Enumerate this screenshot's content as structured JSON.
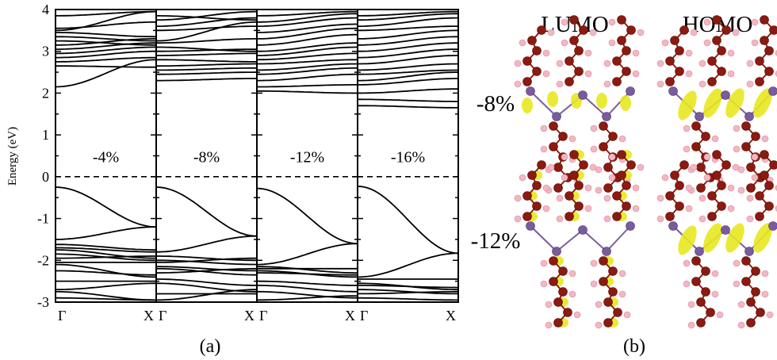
{
  "chart_data": {
    "type": "line",
    "ylabel": "Energy (eV)",
    "ylim": [
      -3,
      4
    ],
    "yticks": [
      "4",
      "3",
      "2",
      "1",
      "0",
      "-1",
      "-2",
      "-3"
    ],
    "fermi_level": 0,
    "grid": false,
    "panels": [
      {
        "strain_label": "-4%",
        "x_tick_labels": [
          "Γ",
          "X"
        ],
        "bands": [
          [
            -0.25,
            -1.2
          ],
          [
            -1.5,
            -1.2
          ],
          [
            -1.62,
            -1.75
          ],
          [
            -1.7,
            -1.8
          ],
          [
            -1.75,
            -1.95
          ],
          [
            -1.85,
            -2.0
          ],
          [
            -1.95,
            -1.9
          ],
          [
            -2.05,
            -2.05
          ],
          [
            -2.1,
            -2.4
          ],
          [
            -2.25,
            -2.35
          ],
          [
            -2.5,
            -2.5
          ],
          [
            -2.7,
            -2.55
          ],
          [
            -2.75,
            -2.95
          ],
          [
            -2.9,
            -2.95
          ],
          [
            2.15,
            2.8
          ],
          [
            2.65,
            2.62
          ],
          [
            2.75,
            2.85
          ],
          [
            2.85,
            3.0
          ],
          [
            2.95,
            3.1
          ],
          [
            3.05,
            3.2
          ],
          [
            3.15,
            3.3
          ],
          [
            3.25,
            3.15
          ],
          [
            3.35,
            3.25
          ],
          [
            3.45,
            3.35
          ],
          [
            3.5,
            3.95
          ],
          [
            3.55,
            3.7
          ],
          [
            3.85,
            3.95
          ]
        ],
        "vbm_eV": -0.25,
        "cbm_eV": 2.15
      },
      {
        "strain_label": "-8%",
        "x_tick_labels": [
          "Γ",
          "X"
        ],
        "bands": [
          [
            -0.25,
            -1.42
          ],
          [
            -1.8,
            -1.42
          ],
          [
            -1.9,
            -2.0
          ],
          [
            -2.0,
            -2.1
          ],
          [
            -2.05,
            -1.95
          ],
          [
            -2.15,
            -2.25
          ],
          [
            -2.2,
            -2.35
          ],
          [
            -2.3,
            -2.2
          ],
          [
            -2.45,
            -2.6
          ],
          [
            -2.55,
            -2.75
          ],
          [
            -2.8,
            -2.8
          ],
          [
            -2.95,
            -2.7
          ],
          [
            2.3,
            2.35
          ],
          [
            2.45,
            2.5
          ],
          [
            2.55,
            2.6
          ],
          [
            2.65,
            2.7
          ],
          [
            2.8,
            2.75
          ],
          [
            2.9,
            2.95
          ],
          [
            3.0,
            3.05
          ],
          [
            3.1,
            3.0
          ],
          [
            3.2,
            3.3
          ],
          [
            3.25,
            3.7
          ],
          [
            3.5,
            3.6
          ],
          [
            3.6,
            3.8
          ],
          [
            3.75,
            3.95
          ],
          [
            3.85,
            3.75
          ]
        ],
        "vbm_eV": -0.25,
        "cbm_eV": 2.3
      },
      {
        "strain_label": "-12%",
        "x_tick_labels": [
          "Γ",
          "X"
        ],
        "bands": [
          [
            -0.28,
            -1.6
          ],
          [
            -2.1,
            -1.6
          ],
          [
            -2.15,
            -2.3
          ],
          [
            -2.2,
            -2.2
          ],
          [
            -2.25,
            -2.4
          ],
          [
            -2.3,
            -2.35
          ],
          [
            -2.5,
            -2.6
          ],
          [
            -2.6,
            -2.75
          ],
          [
            -2.75,
            -2.9
          ],
          [
            -2.95,
            -2.85
          ],
          [
            2.05,
            2.0
          ],
          [
            2.15,
            2.2
          ],
          [
            2.3,
            2.45
          ],
          [
            2.45,
            2.6
          ],
          [
            2.55,
            2.7
          ],
          [
            2.7,
            2.8
          ],
          [
            2.8,
            2.95
          ],
          [
            2.9,
            3.1
          ],
          [
            3.0,
            3.2
          ],
          [
            3.15,
            3.4
          ],
          [
            3.3,
            3.55
          ],
          [
            3.45,
            3.65
          ],
          [
            3.6,
            3.8
          ],
          [
            3.7,
            3.9
          ],
          [
            3.85,
            3.95
          ]
        ],
        "vbm_eV": -0.28,
        "cbm_eV": 2.05
      },
      {
        "strain_label": "-16%",
        "x_tick_labels": [
          "Γ",
          "X"
        ],
        "bands": [
          [
            -0.23,
            -1.83
          ],
          [
            -2.4,
            -1.83
          ],
          [
            -2.45,
            -2.45
          ],
          [
            -2.55,
            -2.7
          ],
          [
            -2.6,
            -2.65
          ],
          [
            -2.7,
            -2.8
          ],
          [
            -2.8,
            -2.75
          ],
          [
            -2.9,
            -2.95
          ],
          [
            1.7,
            1.65
          ],
          [
            1.85,
            1.8
          ],
          [
            2.0,
            2.1
          ],
          [
            2.2,
            2.35
          ],
          [
            2.3,
            2.5
          ],
          [
            2.45,
            2.55
          ],
          [
            2.55,
            2.7
          ],
          [
            2.7,
            2.9
          ],
          [
            2.85,
            3.05
          ],
          [
            3.0,
            3.2
          ],
          [
            3.15,
            3.35
          ],
          [
            3.3,
            3.5
          ],
          [
            3.5,
            3.6
          ],
          [
            3.6,
            3.8
          ],
          [
            3.75,
            3.9
          ],
          [
            3.85,
            3.95
          ]
        ],
        "vbm_eV": -0.23,
        "cbm_eV": 1.7
      }
    ]
  },
  "panel_a_label": "(a)",
  "panel_b": {
    "label": "(b)",
    "column_headers": [
      "LUMO",
      "HOMO"
    ],
    "row_labels": [
      "-8%",
      "-12%"
    ],
    "colors": {
      "carbon": "#8b1a10",
      "hydrogen": "#f4b6c2",
      "nitrogen": "#7a5c9e",
      "orbital": "#e8e820"
    }
  }
}
